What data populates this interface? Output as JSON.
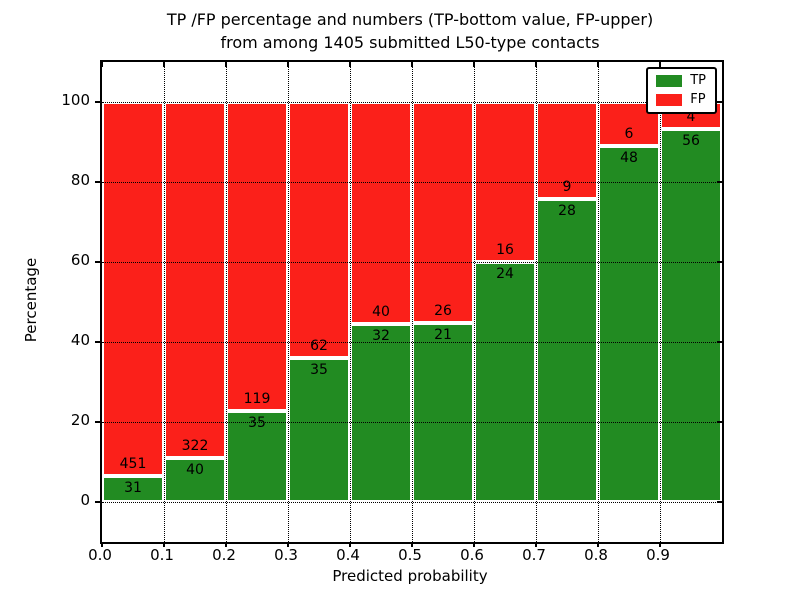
{
  "chart_data": {
    "type": "bar",
    "stacked": true,
    "title_line1": "TP /FP percentage and numbers (TP-bottom value, FP-upper)",
    "title_line2": "from among 1405 submitted L50-type contacts",
    "xlabel": "Predicted probability",
    "ylabel": "Percentage",
    "total_contacts": 1405,
    "bin_width": 0.1,
    "bin_starts": [
      0.0,
      0.1,
      0.2,
      0.3,
      0.4,
      0.5,
      0.6,
      0.7,
      0.8,
      0.9
    ],
    "series": [
      {
        "name": "TP",
        "color": "#228b22",
        "counts": [
          31,
          40,
          35,
          35,
          32,
          21,
          24,
          28,
          48,
          56
        ]
      },
      {
        "name": "FP",
        "color": "#fb201a",
        "counts": [
          451,
          322,
          119,
          62,
          40,
          26,
          16,
          9,
          6,
          4
        ]
      }
    ],
    "tp_percent": [
      6.43,
      11.05,
      22.73,
      36.08,
      44.44,
      44.68,
      60.0,
      75.68,
      88.89,
      93.33
    ],
    "xticks": [
      "0.0",
      "0.1",
      "0.2",
      "0.3",
      "0.4",
      "0.5",
      "0.6",
      "0.7",
      "0.8",
      "0.9"
    ],
    "yticks": [
      "0",
      "20",
      "40",
      "60",
      "80",
      "100"
    ],
    "ytick_values": [
      0,
      20,
      40,
      60,
      80,
      100
    ],
    "xlim": [
      0.0,
      1.0
    ],
    "ylim": [
      -10,
      110
    ],
    "grid": "dotted",
    "bar_edge_color": "#ffffff",
    "legend": {
      "position": "upper-right",
      "entries": [
        {
          "label": "TP",
          "color": "#228b22"
        },
        {
          "label": "FP",
          "color": "#fb201a"
        }
      ]
    }
  }
}
